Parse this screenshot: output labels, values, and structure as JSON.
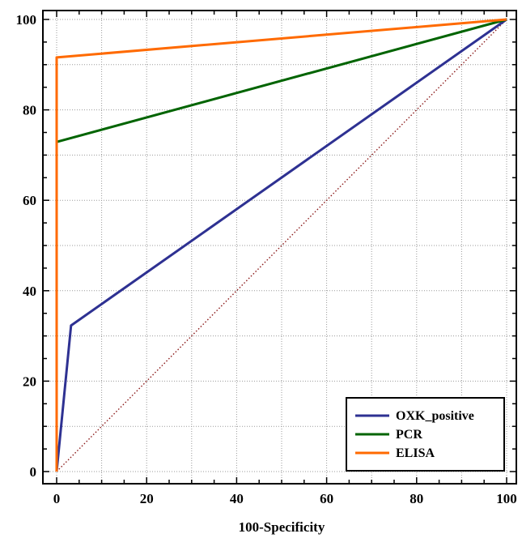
{
  "chart_data": {
    "type": "line",
    "title": "",
    "xlabel": "100-Specificity",
    "ylabel": "",
    "xlim": [
      0,
      100
    ],
    "ylim": [
      0,
      100
    ],
    "x_ticks": [
      0,
      20,
      40,
      60,
      80,
      100
    ],
    "y_ticks": [
      0,
      20,
      40,
      60,
      80,
      100
    ],
    "x_tick_labels": [
      "0",
      "20",
      "40",
      "60",
      "80",
      "100"
    ],
    "y_tick_labels": [
      "0",
      "20",
      "40",
      "60",
      "80",
      "100"
    ],
    "grid": true,
    "legend_position": "bottom-right",
    "series": [
      {
        "name": "OXK_positive",
        "color": "#2e3192",
        "points": [
          [
            0,
            0
          ],
          [
            3.2,
            32.3
          ],
          [
            100,
            100
          ]
        ]
      },
      {
        "name": "PCR",
        "color": "#006400",
        "points": [
          [
            0,
            0
          ],
          [
            0,
            72.9
          ],
          [
            100,
            100
          ]
        ]
      },
      {
        "name": "ELISA",
        "color": "#ff6a00",
        "points": [
          [
            0,
            0
          ],
          [
            0,
            91.6
          ],
          [
            100,
            100
          ]
        ]
      }
    ],
    "reference_line": {
      "color": "#8b1a1a",
      "points": [
        [
          0,
          0
        ],
        [
          100,
          100
        ]
      ]
    }
  }
}
